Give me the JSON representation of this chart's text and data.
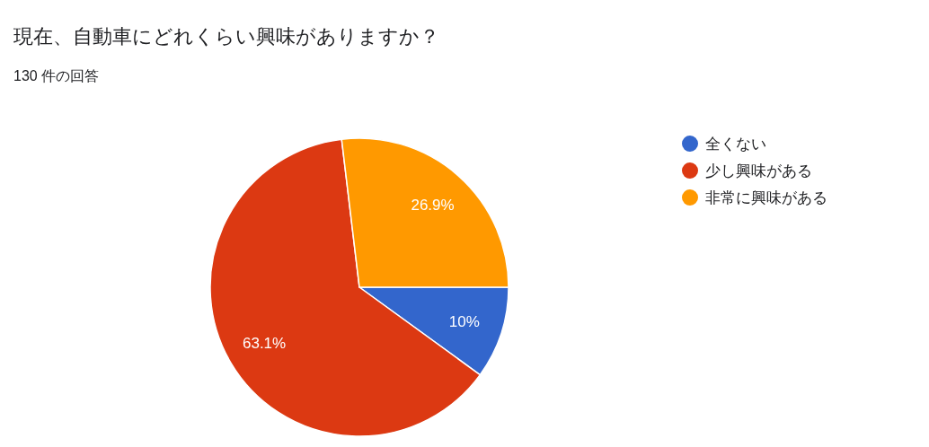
{
  "chart_data": {
    "type": "pie",
    "title": "現在、自動車にどれくらい興味がありますか？",
    "subtitle": "130 件の回答",
    "categories": [
      "全くない",
      "少し興味がある",
      "非常に興味がある"
    ],
    "values": [
      10,
      63.1,
      26.9
    ],
    "colors": [
      "#3366cc",
      "#dc3912",
      "#ff9900"
    ],
    "value_labels": [
      "10%",
      "63.1%",
      "26.9%"
    ],
    "legend": "right"
  }
}
